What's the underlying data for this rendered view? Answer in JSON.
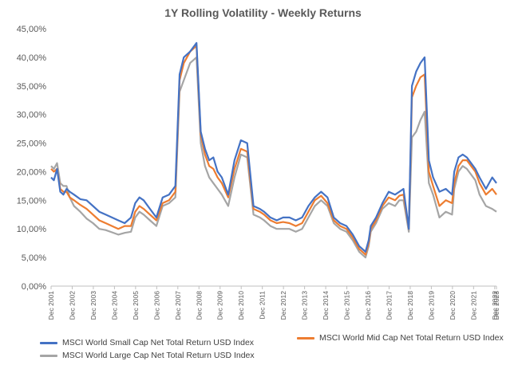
{
  "chart_data": {
    "type": "line",
    "title": "1Y Rolling Volatility - Weekly Returns",
    "xlabel": "",
    "ylabel": "",
    "ylim": [
      0,
      0.45
    ],
    "xlim": [
      2001.917,
      2023.0
    ],
    "grid": false,
    "legend_position": "bottom",
    "y_ticks": [
      {
        "value": 0.0,
        "label": "0,00%"
      },
      {
        "value": 0.05,
        "label": "5,00%"
      },
      {
        "value": 0.1,
        "label": "10,00%"
      },
      {
        "value": 0.15,
        "label": "15,00%"
      },
      {
        "value": 0.2,
        "label": "20,00%"
      },
      {
        "value": 0.25,
        "label": "25,00%"
      },
      {
        "value": 0.3,
        "label": "30,00%"
      },
      {
        "value": 0.35,
        "label": "35,00%"
      },
      {
        "value": 0.4,
        "label": "40,00%"
      },
      {
        "value": 0.45,
        "label": "45,00%"
      }
    ],
    "x_ticks": [
      {
        "value": 2001.917,
        "label": "Dec 2001"
      },
      {
        "value": 2002.917,
        "label": "Dec 2002"
      },
      {
        "value": 2003.917,
        "label": "Dec 2003"
      },
      {
        "value": 2004.917,
        "label": "Dec 2004"
      },
      {
        "value": 2005.917,
        "label": "Dec 2005"
      },
      {
        "value": 2006.917,
        "label": "Dec 2006"
      },
      {
        "value": 2007.917,
        "label": "Dec 2007"
      },
      {
        "value": 2008.917,
        "label": "Dec 2008"
      },
      {
        "value": 2009.917,
        "label": "Dec 2009"
      },
      {
        "value": 2010.917,
        "label": "Dec 2010"
      },
      {
        "value": 2011.917,
        "label": "Dec 2011"
      },
      {
        "value": 2012.917,
        "label": "Dec 2012"
      },
      {
        "value": 2013.917,
        "label": "Dec 2013"
      },
      {
        "value": 2014.917,
        "label": "Dec 2014"
      },
      {
        "value": 2015.917,
        "label": "Dec 2015"
      },
      {
        "value": 2016.917,
        "label": "Dec 2016"
      },
      {
        "value": 2017.917,
        "label": "Dec 2017"
      },
      {
        "value": 2018.917,
        "label": "Dec 2018"
      },
      {
        "value": 2019.917,
        "label": "Dec 2019"
      },
      {
        "value": 2020.917,
        "label": "Dec 2020"
      },
      {
        "value": 2021.917,
        "label": "Dec 2021"
      },
      {
        "value": 2022.917,
        "label": "Dec 2022"
      },
      {
        "value": 2023.0,
        "label": "Dec 2023"
      }
    ],
    "series": [
      {
        "name": "MSCI World Small Cap Net Total Return USD Index",
        "color": "#4472C4",
        "x": [
          2001.917,
          2002.05,
          2002.2,
          2002.35,
          2002.5,
          2002.65,
          2002.8,
          2003.0,
          2003.3,
          2003.6,
          2003.9,
          2004.2,
          2004.5,
          2004.8,
          2005.1,
          2005.4,
          2005.7,
          2005.9,
          2006.1,
          2006.3,
          2006.6,
          2006.9,
          2007.2,
          2007.5,
          2007.8,
          2008.0,
          2008.2,
          2008.5,
          2008.8,
          2009.0,
          2009.2,
          2009.4,
          2009.6,
          2009.8,
          2010.0,
          2010.3,
          2010.6,
          2010.9,
          2011.2,
          2011.5,
          2011.8,
          2012.0,
          2012.3,
          2012.6,
          2012.9,
          2013.2,
          2013.5,
          2013.8,
          2014.1,
          2014.4,
          2014.7,
          2015.0,
          2015.3,
          2015.6,
          2015.9,
          2016.2,
          2016.5,
          2016.8,
          2016.95,
          2017.05,
          2017.3,
          2017.6,
          2017.9,
          2018.2,
          2018.4,
          2018.6,
          2018.85,
          2019.0,
          2019.2,
          2019.4,
          2019.6,
          2019.8,
          2020.0,
          2020.3,
          2020.6,
          2020.9,
          2021.0,
          2021.2,
          2021.4,
          2021.6,
          2021.8,
          2022.0,
          2022.2,
          2022.5,
          2022.8,
          2023.0
        ],
        "y": [
          0.19,
          0.185,
          0.205,
          0.165,
          0.16,
          0.17,
          0.165,
          0.16,
          0.152,
          0.15,
          0.14,
          0.13,
          0.125,
          0.12,
          0.115,
          0.11,
          0.12,
          0.145,
          0.155,
          0.15,
          0.135,
          0.12,
          0.155,
          0.16,
          0.175,
          0.37,
          0.4,
          0.41,
          0.425,
          0.27,
          0.24,
          0.22,
          0.225,
          0.2,
          0.19,
          0.16,
          0.22,
          0.255,
          0.25,
          0.14,
          0.135,
          0.13,
          0.12,
          0.115,
          0.12,
          0.12,
          0.115,
          0.12,
          0.14,
          0.155,
          0.165,
          0.155,
          0.12,
          0.11,
          0.105,
          0.09,
          0.07,
          0.06,
          0.08,
          0.105,
          0.12,
          0.145,
          0.165,
          0.16,
          0.165,
          0.17,
          0.1,
          0.35,
          0.375,
          0.39,
          0.4,
          0.22,
          0.19,
          0.165,
          0.17,
          0.16,
          0.2,
          0.225,
          0.23,
          0.225,
          0.215,
          0.205,
          0.19,
          0.17,
          0.19,
          0.18
        ]
      },
      {
        "name": "MSCI World Mid Cap Net Total Return USD Index",
        "color": "#ED7D31",
        "x": [
          2001.917,
          2002.05,
          2002.2,
          2002.35,
          2002.5,
          2002.65,
          2002.8,
          2003.0,
          2003.3,
          2003.6,
          2003.9,
          2004.2,
          2004.5,
          2004.8,
          2005.1,
          2005.4,
          2005.7,
          2005.9,
          2006.1,
          2006.3,
          2006.6,
          2006.9,
          2007.2,
          2007.5,
          2007.8,
          2008.0,
          2008.2,
          2008.5,
          2008.8,
          2009.0,
          2009.2,
          2009.4,
          2009.6,
          2009.8,
          2010.0,
          2010.3,
          2010.6,
          2010.9,
          2011.2,
          2011.5,
          2011.8,
          2012.0,
          2012.3,
          2012.6,
          2012.9,
          2013.2,
          2013.5,
          2013.8,
          2014.1,
          2014.4,
          2014.7,
          2015.0,
          2015.3,
          2015.6,
          2015.9,
          2016.2,
          2016.5,
          2016.8,
          2016.95,
          2017.05,
          2017.3,
          2017.6,
          2017.9,
          2018.2,
          2018.4,
          2018.6,
          2018.85,
          2019.0,
          2019.2,
          2019.4,
          2019.6,
          2019.8,
          2020.0,
          2020.3,
          2020.6,
          2020.9,
          2021.0,
          2021.2,
          2021.4,
          2021.6,
          2021.8,
          2022.0,
          2022.2,
          2022.5,
          2022.8,
          2023.0
        ],
        "y": [
          0.205,
          0.2,
          0.205,
          0.17,
          0.165,
          0.165,
          0.155,
          0.15,
          0.142,
          0.135,
          0.125,
          0.115,
          0.11,
          0.105,
          0.1,
          0.105,
          0.105,
          0.13,
          0.14,
          0.135,
          0.125,
          0.115,
          0.145,
          0.15,
          0.165,
          0.36,
          0.39,
          0.41,
          0.42,
          0.265,
          0.23,
          0.21,
          0.205,
          0.19,
          0.18,
          0.155,
          0.205,
          0.24,
          0.235,
          0.135,
          0.13,
          0.125,
          0.115,
          0.11,
          0.112,
          0.11,
          0.105,
          0.11,
          0.13,
          0.15,
          0.158,
          0.145,
          0.115,
          0.105,
          0.1,
          0.085,
          0.065,
          0.055,
          0.075,
          0.1,
          0.115,
          0.14,
          0.155,
          0.15,
          0.158,
          0.16,
          0.1,
          0.33,
          0.35,
          0.365,
          0.37,
          0.2,
          0.175,
          0.14,
          0.15,
          0.145,
          0.18,
          0.21,
          0.22,
          0.22,
          0.21,
          0.2,
          0.18,
          0.16,
          0.17,
          0.16
        ]
      },
      {
        "name": "MSCI World Large Cap Net Total Return USD Index",
        "color": "#A5A5A5",
        "x": [
          2001.917,
          2002.05,
          2002.2,
          2002.35,
          2002.5,
          2002.65,
          2002.8,
          2003.0,
          2003.3,
          2003.6,
          2003.9,
          2004.2,
          2004.5,
          2004.8,
          2005.1,
          2005.4,
          2005.7,
          2005.9,
          2006.1,
          2006.3,
          2006.6,
          2006.9,
          2007.2,
          2007.5,
          2007.8,
          2008.0,
          2008.2,
          2008.5,
          2008.8,
          2009.0,
          2009.2,
          2009.4,
          2009.6,
          2009.8,
          2010.0,
          2010.3,
          2010.6,
          2010.9,
          2011.2,
          2011.5,
          2011.8,
          2012.0,
          2012.3,
          2012.6,
          2012.9,
          2013.2,
          2013.5,
          2013.8,
          2014.1,
          2014.4,
          2014.7,
          2015.0,
          2015.3,
          2015.6,
          2015.9,
          2016.2,
          2016.5,
          2016.8,
          2016.95,
          2017.05,
          2017.3,
          2017.6,
          2017.9,
          2018.2,
          2018.4,
          2018.6,
          2018.85,
          2019.0,
          2019.2,
          2019.4,
          2019.6,
          2019.8,
          2020.0,
          2020.3,
          2020.6,
          2020.9,
          2021.0,
          2021.2,
          2021.4,
          2021.6,
          2021.8,
          2022.0,
          2022.2,
          2022.5,
          2022.8,
          2023.0
        ],
        "y": [
          0.21,
          0.205,
          0.215,
          0.18,
          0.175,
          0.175,
          0.155,
          0.14,
          0.13,
          0.118,
          0.11,
          0.1,
          0.098,
          0.094,
          0.09,
          0.093,
          0.095,
          0.12,
          0.13,
          0.125,
          0.115,
          0.105,
          0.14,
          0.145,
          0.155,
          0.34,
          0.36,
          0.39,
          0.4,
          0.25,
          0.21,
          0.19,
          0.18,
          0.17,
          0.16,
          0.14,
          0.19,
          0.23,
          0.225,
          0.125,
          0.12,
          0.115,
          0.105,
          0.1,
          0.1,
          0.1,
          0.095,
          0.1,
          0.12,
          0.14,
          0.15,
          0.14,
          0.11,
          0.1,
          0.095,
          0.08,
          0.06,
          0.05,
          0.07,
          0.095,
          0.11,
          0.135,
          0.145,
          0.14,
          0.15,
          0.15,
          0.095,
          0.26,
          0.27,
          0.29,
          0.305,
          0.18,
          0.16,
          0.12,
          0.13,
          0.125,
          0.17,
          0.2,
          0.21,
          0.205,
          0.195,
          0.185,
          0.16,
          0.14,
          0.135,
          0.13
        ]
      }
    ]
  }
}
